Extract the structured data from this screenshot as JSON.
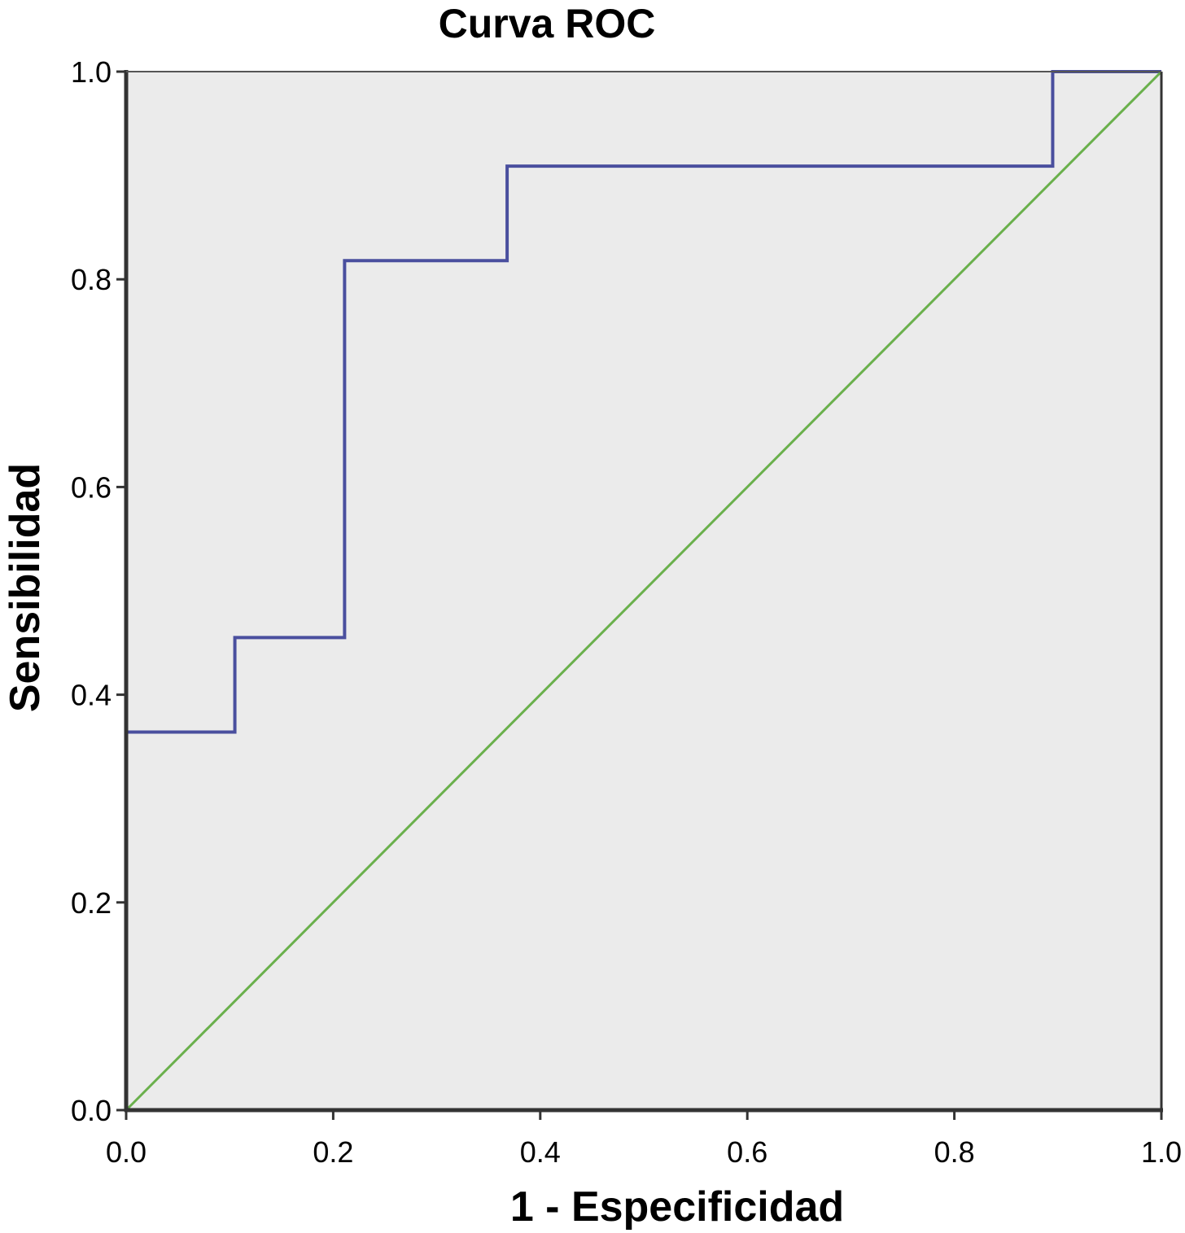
{
  "chart_data": {
    "type": "line",
    "title": "Curva ROC",
    "xlabel": "1 - Especificidad",
    "ylabel": "Sensibilidad",
    "xlim": [
      0,
      1
    ],
    "ylim": [
      0,
      1
    ],
    "x_ticks": [
      "0.0",
      "0.2",
      "0.4",
      "0.6",
      "0.8",
      "1.0"
    ],
    "y_ticks": [
      "0.0",
      "0.2",
      "0.4",
      "0.6",
      "0.8",
      "1.0"
    ],
    "grid": false,
    "background_color": "#ebebeb",
    "series": [
      {
        "color": "#4a4f9e",
        "style": "step",
        "points": [
          [
            0.0,
            0.0
          ],
          [
            0.0,
            0.364
          ],
          [
            0.105,
            0.364
          ],
          [
            0.105,
            0.455
          ],
          [
            0.211,
            0.455
          ],
          [
            0.211,
            0.818
          ],
          [
            0.368,
            0.818
          ],
          [
            0.368,
            0.909
          ],
          [
            0.895,
            0.909
          ],
          [
            0.895,
            1.0
          ],
          [
            1.0,
            1.0
          ]
        ]
      },
      {
        "color": "#6ab04c",
        "style": "line",
        "points": [
          [
            0.0,
            0.0
          ],
          [
            1.0,
            1.0
          ]
        ]
      }
    ]
  }
}
